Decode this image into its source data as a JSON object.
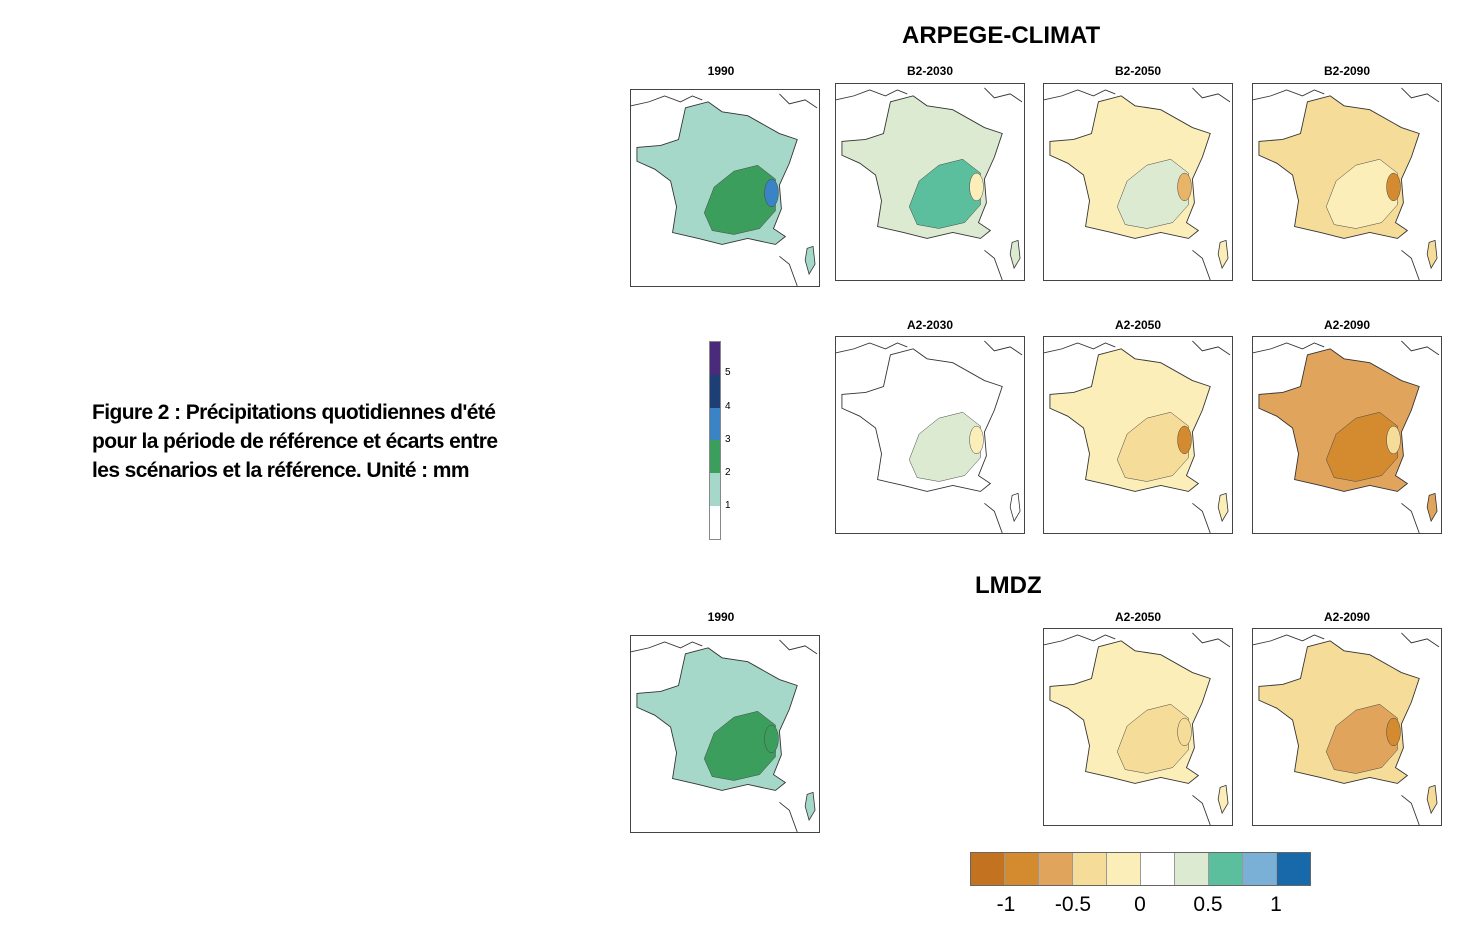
{
  "caption": {
    "line1": "Figure 2 : Précipitations quotidiennes d'été",
    "line2": "pour la période de référence et écarts entre",
    "line3": "les scénarios et la référence. Unité : mm"
  },
  "groups": {
    "arpege": "ARPEGE-CLIMAT",
    "lmdz": "LMDZ"
  },
  "panels": [
    {
      "id": "arpege-1990",
      "title": "1990",
      "fill": "#a6d8c9",
      "inner": "#3c9e5d",
      "blob": "#3a83c4"
    },
    {
      "id": "arpege-b2-2030",
      "title": "B2-2030",
      "fill": "#dcead2",
      "inner": "#5bbf9d",
      "blob": "#fbeeb8"
    },
    {
      "id": "arpege-b2-2050",
      "title": "B2-2050",
      "fill": "#fbeeb8",
      "inner": "#dcead2",
      "blob": "#e8b468"
    },
    {
      "id": "arpege-b2-2090",
      "title": "B2-2090",
      "fill": "#f5dc98",
      "inner": "#fbeeb8",
      "blob": "#d48b2f"
    },
    {
      "id": "arpege-a2-2030",
      "title": "A2-2030",
      "fill": "#ffffff",
      "inner": "#dcead2",
      "blob": "#fbeeb8"
    },
    {
      "id": "arpege-a2-2050",
      "title": "A2-2050",
      "fill": "#fbeeb8",
      "inner": "#f5dc98",
      "blob": "#d48b2f"
    },
    {
      "id": "arpege-a2-2090",
      "title": "A2-2090",
      "fill": "#e0a45c",
      "inner": "#d48b2f",
      "blob": "#f5dc98"
    },
    {
      "id": "lmdz-1990",
      "title": "1990",
      "fill": "#a6d8c9",
      "inner": "#3c9e5d",
      "blob": "#3c9e5d"
    },
    {
      "id": "lmdz-a2-2050",
      "title": "A2-2050",
      "fill": "#fbeeb8",
      "inner": "#f5dc98",
      "blob": "#f5dc98"
    },
    {
      "id": "lmdz-a2-2090",
      "title": "A2-2090",
      "fill": "#f5dc98",
      "inner": "#e0a45c",
      "blob": "#d48b2f"
    }
  ],
  "vertical_scale": {
    "ticks": [
      "5",
      "4",
      "3",
      "2",
      "1"
    ],
    "colors": [
      "#4a2a7a",
      "#1d3f75",
      "#3a83c4",
      "#3c9e5d",
      "#a6d8c9",
      "#ffffff"
    ]
  },
  "horizontal_scale": {
    "ticks": [
      "-1",
      "-0.5",
      "0",
      "0.5",
      "1"
    ],
    "colors": [
      "#c3731f",
      "#d48b2f",
      "#e0a45c",
      "#f5dc98",
      "#fbeeb8",
      "#ffffff",
      "#dcead2",
      "#5bbf9d",
      "#7ab0d5",
      "#1769aa"
    ]
  }
}
